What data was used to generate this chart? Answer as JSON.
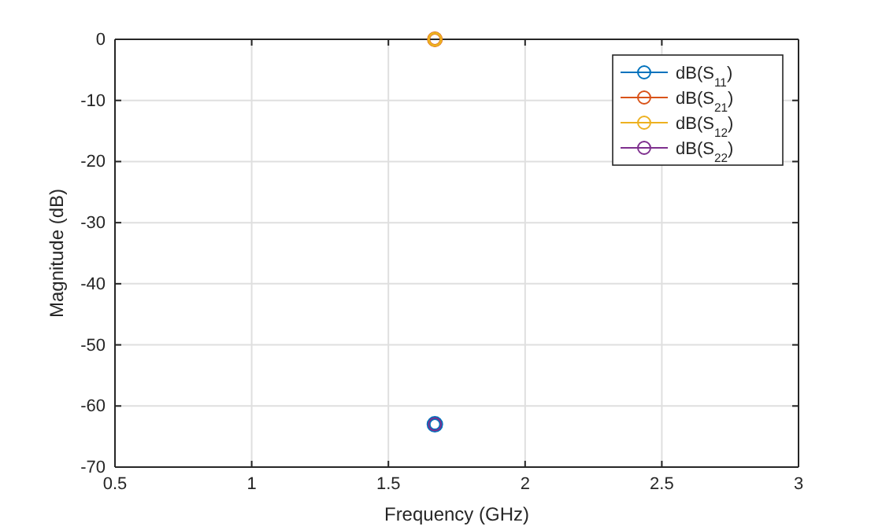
{
  "chart_data": {
    "type": "line",
    "xlabel": "Frequency (GHz)",
    "ylabel": "Magnitude (dB)",
    "xlim": [
      0.5,
      3
    ],
    "xticks": [
      0.5,
      1,
      1.5,
      2,
      2.5,
      3
    ],
    "ylim": [
      -70,
      0
    ],
    "yticks": [
      -70,
      -60,
      -50,
      -40,
      -30,
      -20,
      -10,
      0
    ],
    "x": [
      1.67
    ],
    "series": [
      {
        "name": "dB(S$_{11}$)",
        "color": "#0072bd",
        "values": [
          -63
        ]
      },
      {
        "name": "dB(S$_{21}$)",
        "color": "#d95319",
        "values": [
          0
        ]
      },
      {
        "name": "dB(S$_{12}$)",
        "color": "#edb120",
        "values": [
          0
        ]
      },
      {
        "name": "dB(S$_{22}$)",
        "color": "#7e2f8e",
        "values": [
          -63
        ]
      }
    ],
    "grid": true,
    "legend": "top right",
    "marker": "circle",
    "line_style": "solid"
  }
}
